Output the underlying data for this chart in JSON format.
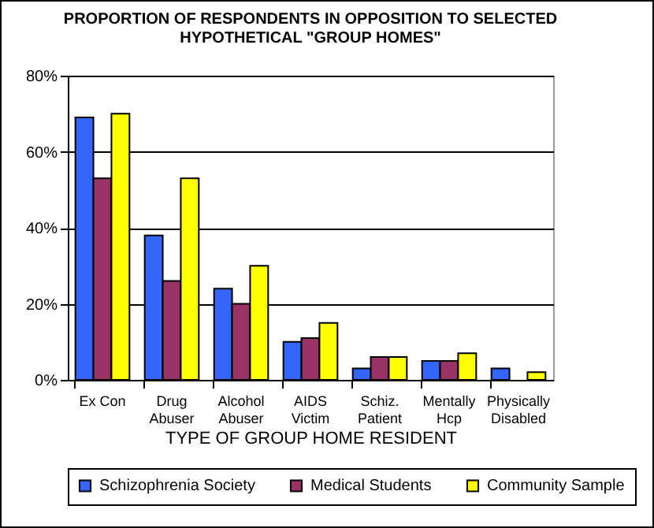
{
  "chart_data": {
    "type": "bar",
    "title": "PROPORTION OF RESPONDENTS IN OPPOSITION TO SELECTED\nHYPOTHETICAL \"GROUP HOMES\"",
    "xlabel": "TYPE OF GROUP HOME RESIDENT",
    "categories": [
      "Ex Con",
      "Drug\nAbuser",
      "Alcohol\nAbuser",
      "AIDS\nVictim",
      "Schiz.\nPatient",
      "Mentally\nHcp",
      "Physically\nDisabled"
    ],
    "series": [
      {
        "name": "Schizophrenia Society",
        "color": "#3366ff",
        "values": [
          69,
          38,
          24,
          10,
          3,
          5,
          3
        ]
      },
      {
        "name": "Medical Students",
        "color": "#993366",
        "values": [
          53,
          26,
          20,
          11,
          6,
          5,
          null
        ]
      },
      {
        "name": "Community Sample",
        "color": "#ffff00",
        "values": [
          70,
          53,
          30,
          15,
          6,
          7,
          2
        ]
      }
    ],
    "ylim": [
      0,
      80
    ],
    "yticks": [
      {
        "value": 0,
        "label": "0%"
      },
      {
        "value": 20,
        "label": "20%"
      },
      {
        "value": 40,
        "label": "40%"
      },
      {
        "value": 60,
        "label": "60%"
      },
      {
        "value": 80,
        "label": "80%"
      }
    ],
    "grid": "y",
    "legend": "bottom"
  }
}
